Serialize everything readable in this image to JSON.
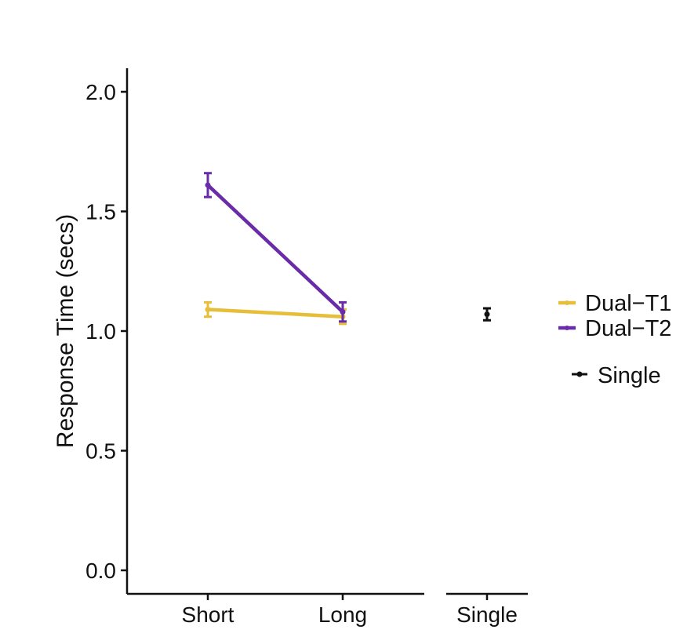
{
  "chart_data": [
    {
      "type": "line",
      "panel": "dual",
      "categories": [
        "Short",
        "Long"
      ],
      "ylabel": "Response Time (secs)",
      "xlabel": "",
      "ylim": [
        0,
        2.0
      ],
      "yticks": [
        "0.0",
        "0.5",
        "1.0",
        "1.5",
        "2.0"
      ],
      "grid": false,
      "error_bars": true,
      "series": [
        {
          "name": "Dual−T1",
          "color": "#E6BE3A",
          "values": [
            1.09,
            1.06
          ],
          "error": [
            0.03,
            0.03
          ]
        },
        {
          "name": "Dual−T2",
          "color": "#6A2BA8",
          "values": [
            1.61,
            1.08
          ],
          "error": [
            0.05,
            0.04
          ]
        }
      ]
    },
    {
      "type": "scatter",
      "panel": "single",
      "categories": [
        "Single"
      ],
      "ylim": [
        0,
        2.0
      ],
      "error_bars": true,
      "series": [
        {
          "name": "Single",
          "color": "#111111",
          "values": [
            1.07
          ],
          "error": [
            0.025
          ]
        }
      ]
    }
  ],
  "legend": {
    "position": "right",
    "items": [
      "Dual−T1",
      "Dual−T2",
      "Single"
    ]
  }
}
